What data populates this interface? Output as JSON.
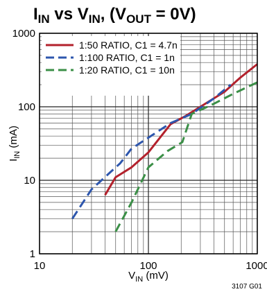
{
  "chart_data": {
    "type": "line",
    "title": {
      "main": "I",
      "main_sub": "IN",
      "vs": " vs V",
      "vs_sub": "IN",
      "rest": ", (V",
      "rest_sub": "OUT",
      "end": " = 0V)"
    },
    "xlabel": {
      "main": "V",
      "sub": "IN",
      "unit": " (mV)"
    },
    "ylabel": {
      "main": "I",
      "sub": "IN",
      "unit": " (mA)"
    },
    "x_scale": "log",
    "y_scale": "log",
    "xlim": [
      10,
      1000
    ],
    "ylim": [
      1,
      1000
    ],
    "x_ticks": [
      {
        "value": 10,
        "label": "10"
      },
      {
        "value": 100,
        "label": "100"
      },
      {
        "value": 1000,
        "label": "1000"
      }
    ],
    "y_ticks": [
      {
        "value": 1,
        "label": "1"
      },
      {
        "value": 10,
        "label": "10"
      },
      {
        "value": 100,
        "label": "100"
      },
      {
        "value": 1000,
        "label": "1000"
      }
    ],
    "grid": true,
    "legend_position": "top-left",
    "figure_code": "3107 G01",
    "series": [
      {
        "name": "1:50 RATIO, C1 = 4.7n",
        "color": "#b3212c",
        "dash": "solid",
        "x": [
          40,
          50,
          70,
          100,
          160,
          220,
          300,
          500,
          700,
          1000
        ],
        "y": [
          6.3,
          11,
          15,
          24,
          58,
          75,
          100,
          160,
          250,
          380
        ]
      },
      {
        "name": "1:100 RATIO, C1 = 1n",
        "color": "#2d56ad",
        "dash": "dashed",
        "x": [
          20,
          30,
          45,
          55,
          70,
          100,
          160,
          250,
          400,
          570
        ],
        "y": [
          3,
          7.5,
          13,
          17,
          27,
          38,
          60,
          80,
          130,
          200
        ]
      },
      {
        "name": "1:20 RATIO, C1 = 10n",
        "color": "#3b8f47",
        "dash": "dashed",
        "x": [
          50,
          70,
          100,
          150,
          205,
          250,
          400,
          600,
          1000
        ],
        "y": [
          2,
          5,
          15,
          25,
          33,
          80,
          110,
          150,
          215
        ]
      }
    ]
  }
}
